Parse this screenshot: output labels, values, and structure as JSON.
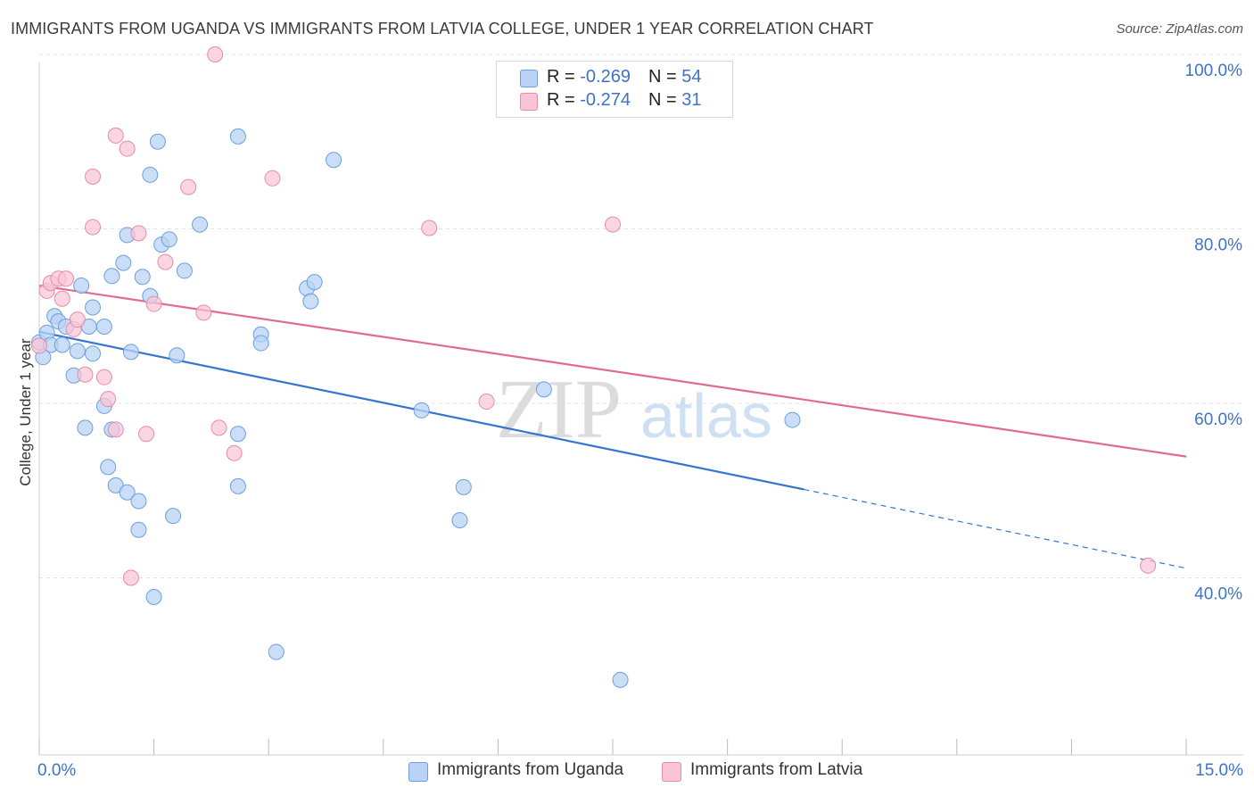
{
  "title": "IMMIGRANTS FROM UGANDA VS IMMIGRANTS FROM LATVIA COLLEGE, UNDER 1 YEAR CORRELATION CHART",
  "source": "Source: ZipAtlas.com",
  "watermark": {
    "zip": "ZIP",
    "atlas": "atlas"
  },
  "stats": {
    "rows": [
      {
        "r_label": "R = ",
        "r_value": "-0.269",
        "n_label": "N = ",
        "n_value": "54"
      },
      {
        "r_label": "R = ",
        "r_value": "-0.274",
        "n_label": "N = ",
        "n_value": "31"
      }
    ]
  },
  "legend": {
    "items": [
      {
        "label": "Immigrants from Uganda"
      },
      {
        "label": "Immigrants from Latvia"
      }
    ]
  },
  "colors": {
    "uganda_fill": "#b8d3f5",
    "uganda_stroke": "#6d9fdc",
    "uganda_line": "#3575d0",
    "latvia_fill": "#f9c5d6",
    "latvia_stroke": "#e88aaa",
    "latvia_line": "#e06b92",
    "tick_label": "#3d73c8",
    "grid": "#e3e3e3"
  },
  "chart_data": {
    "type": "scatter",
    "xlabel": "",
    "ylabel": "College, Under 1 year",
    "xlim": [
      0,
      15
    ],
    "ylim": [
      20,
      100
    ],
    "x_tick_labels": [
      "0.0%",
      "15.0%"
    ],
    "y_tick_labels": [
      "40.0%",
      "60.0%",
      "80.0%",
      "100.0%"
    ],
    "y_ticks": [
      40,
      60,
      80,
      100
    ],
    "grid": true,
    "legend_position": "bottom-center",
    "series": [
      {
        "name": "Immigrants from Uganda",
        "r": -0.269,
        "n": 54,
        "trend": {
          "x0": 0,
          "y0": 68.2,
          "x1": 15,
          "y1": 41.1,
          "solid_until_x": 10.0
        },
        "points": [
          [
            0.0,
            67.0
          ],
          [
            0.1,
            68.1
          ],
          [
            0.15,
            66.7
          ],
          [
            0.2,
            70.0
          ],
          [
            0.25,
            69.4
          ],
          [
            0.3,
            66.7
          ],
          [
            0.35,
            68.8
          ],
          [
            0.45,
            63.2
          ],
          [
            0.5,
            66.0
          ],
          [
            0.55,
            73.5
          ],
          [
            0.6,
            57.2
          ],
          [
            0.65,
            68.8
          ],
          [
            0.7,
            65.7
          ],
          [
            0.7,
            71.0
          ],
          [
            0.85,
            59.7
          ],
          [
            0.85,
            68.8
          ],
          [
            0.9,
            52.7
          ],
          [
            0.95,
            57.0
          ],
          [
            0.95,
            74.6
          ],
          [
            1.0,
            50.6
          ],
          [
            1.1,
            76.1
          ],
          [
            1.15,
            79.3
          ],
          [
            1.15,
            49.8
          ],
          [
            1.2,
            65.9
          ],
          [
            1.3,
            45.5
          ],
          [
            1.3,
            48.8
          ],
          [
            1.35,
            74.5
          ],
          [
            1.45,
            72.3
          ],
          [
            1.5,
            37.8
          ],
          [
            1.55,
            90.0
          ],
          [
            1.45,
            86.2
          ],
          [
            1.6,
            78.2
          ],
          [
            1.7,
            78.8
          ],
          [
            1.75,
            47.1
          ],
          [
            1.8,
            65.5
          ],
          [
            1.9,
            75.2
          ],
          [
            2.1,
            80.5
          ],
          [
            2.6,
            56.5
          ],
          [
            2.6,
            50.5
          ],
          [
            2.6,
            90.6
          ],
          [
            2.9,
            67.9
          ],
          [
            2.9,
            66.9
          ],
          [
            3.1,
            31.5
          ],
          [
            3.5,
            73.2
          ],
          [
            3.55,
            71.7
          ],
          [
            3.6,
            73.9
          ],
          [
            3.85,
            87.9
          ],
          [
            5.0,
            59.2
          ],
          [
            5.5,
            46.6
          ],
          [
            5.55,
            50.4
          ],
          [
            6.6,
            61.6
          ],
          [
            7.6,
            28.3
          ],
          [
            9.85,
            58.1
          ],
          [
            0.05,
            65.3
          ]
        ]
      },
      {
        "name": "Immigrants from Latvia",
        "r": -0.274,
        "n": 31,
        "trend": {
          "x0": 0,
          "y0": 73.5,
          "x1": 15,
          "y1": 53.9
        },
        "points": [
          [
            0.0,
            66.6
          ],
          [
            0.1,
            72.9
          ],
          [
            0.15,
            73.8
          ],
          [
            0.25,
            74.3
          ],
          [
            0.3,
            72.0
          ],
          [
            0.35,
            74.3
          ],
          [
            0.45,
            68.5
          ],
          [
            0.5,
            69.6
          ],
          [
            0.6,
            63.3
          ],
          [
            0.7,
            86.0
          ],
          [
            0.7,
            80.2
          ],
          [
            0.85,
            63.0
          ],
          [
            0.9,
            60.5
          ],
          [
            1.0,
            57.0
          ],
          [
            1.0,
            90.7
          ],
          [
            1.15,
            89.2
          ],
          [
            1.2,
            40.0
          ],
          [
            1.3,
            79.5
          ],
          [
            1.4,
            56.5
          ],
          [
            1.5,
            71.4
          ],
          [
            1.65,
            76.2
          ],
          [
            1.95,
            84.8
          ],
          [
            2.15,
            70.4
          ],
          [
            2.3,
            100.0
          ],
          [
            2.35,
            57.2
          ],
          [
            2.55,
            54.3
          ],
          [
            3.05,
            85.8
          ],
          [
            5.1,
            80.1
          ],
          [
            5.85,
            60.2
          ],
          [
            7.5,
            80.5
          ],
          [
            14.5,
            41.4
          ]
        ]
      }
    ]
  }
}
